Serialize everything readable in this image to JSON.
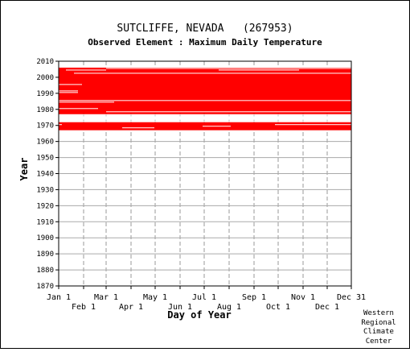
{
  "chart_data": {
    "type": "heatmap",
    "title": "SUTCLIFFE, NEVADA   (267953)",
    "subtitle": "Observed Element : Maximum Daily Temperature",
    "xlabel": "Day of Year",
    "ylabel": "Year",
    "ylim": [
      1870,
      2010
    ],
    "xlim": [
      "Jan 1",
      "Dec 31"
    ],
    "grid": true,
    "series_color": "#ff0000",
    "y_ticks": [
      1870,
      1880,
      1890,
      1900,
      1910,
      1920,
      1930,
      1940,
      1950,
      1960,
      1970,
      1980,
      1990,
      2000,
      2010
    ],
    "x_ticks_upper": [
      {
        "label": "Jan 1",
        "day": 1
      },
      {
        "label": "Mar 1",
        "day": 60
      },
      {
        "label": "May 1",
        "day": 121
      },
      {
        "label": "Jul 1",
        "day": 182
      },
      {
        "label": "Sep 1",
        "day": 244
      },
      {
        "label": "Nov 1",
        "day": 305
      },
      {
        "label": "Dec 31",
        "day": 365
      }
    ],
    "x_ticks_lower": [
      {
        "label": "Feb 1",
        "day": 32
      },
      {
        "label": "Apr 1",
        "day": 91
      },
      {
        "label": "Jun 1",
        "day": 152
      },
      {
        "label": "Aug 1",
        "day": 213
      },
      {
        "label": "Oct 1",
        "day": 274
      },
      {
        "label": "Dec 1",
        "day": 335
      }
    ],
    "observed_periods": [
      {
        "start_year": 1967,
        "end_year": 1971,
        "start_day": 1,
        "end_day": 365
      },
      {
        "start_year": 1977,
        "end_year": 2005,
        "start_day": 1,
        "end_day": 365
      }
    ],
    "missing_records": [
      {
        "year": 1972,
        "start_day": 1,
        "end_day": 365
      },
      {
        "year": 1973,
        "start_day": 1,
        "end_day": 365
      },
      {
        "year": 1974,
        "start_day": 1,
        "end_day": 365
      },
      {
        "year": 1975,
        "start_day": 1,
        "end_day": 365
      },
      {
        "year": 1976,
        "start_day": 1,
        "end_day": 365
      },
      {
        "year": 1970,
        "start_day": 1,
        "end_day": 5
      },
      {
        "year": 1968,
        "start_day": 80,
        "end_day": 120
      },
      {
        "year": 1969,
        "start_day": 180,
        "end_day": 215
      },
      {
        "year": 1970,
        "start_day": 270,
        "end_day": 365
      },
      {
        "year": 1978,
        "start_day": 60,
        "end_day": 365
      },
      {
        "year": 1980,
        "start_day": 1,
        "end_day": 50
      },
      {
        "year": 1984,
        "start_day": 1,
        "end_day": 70
      },
      {
        "year": 1985,
        "start_day": 1,
        "end_day": 365
      },
      {
        "year": 1990,
        "start_day": 1,
        "end_day": 25
      },
      {
        "year": 1991,
        "start_day": 1,
        "end_day": 25
      },
      {
        "year": 1995,
        "start_day": 1,
        "end_day": 30
      },
      {
        "year": 2002,
        "start_day": 20,
        "end_day": 365
      },
      {
        "year": 2004,
        "start_day": 10,
        "end_day": 60
      },
      {
        "year": 2004,
        "start_day": 200,
        "end_day": 300
      },
      {
        "year": 2005,
        "start_day": 60,
        "end_day": 365
      }
    ]
  },
  "footer": {
    "lines": [
      "Western",
      "Regional",
      "Climate",
      "Center"
    ]
  }
}
